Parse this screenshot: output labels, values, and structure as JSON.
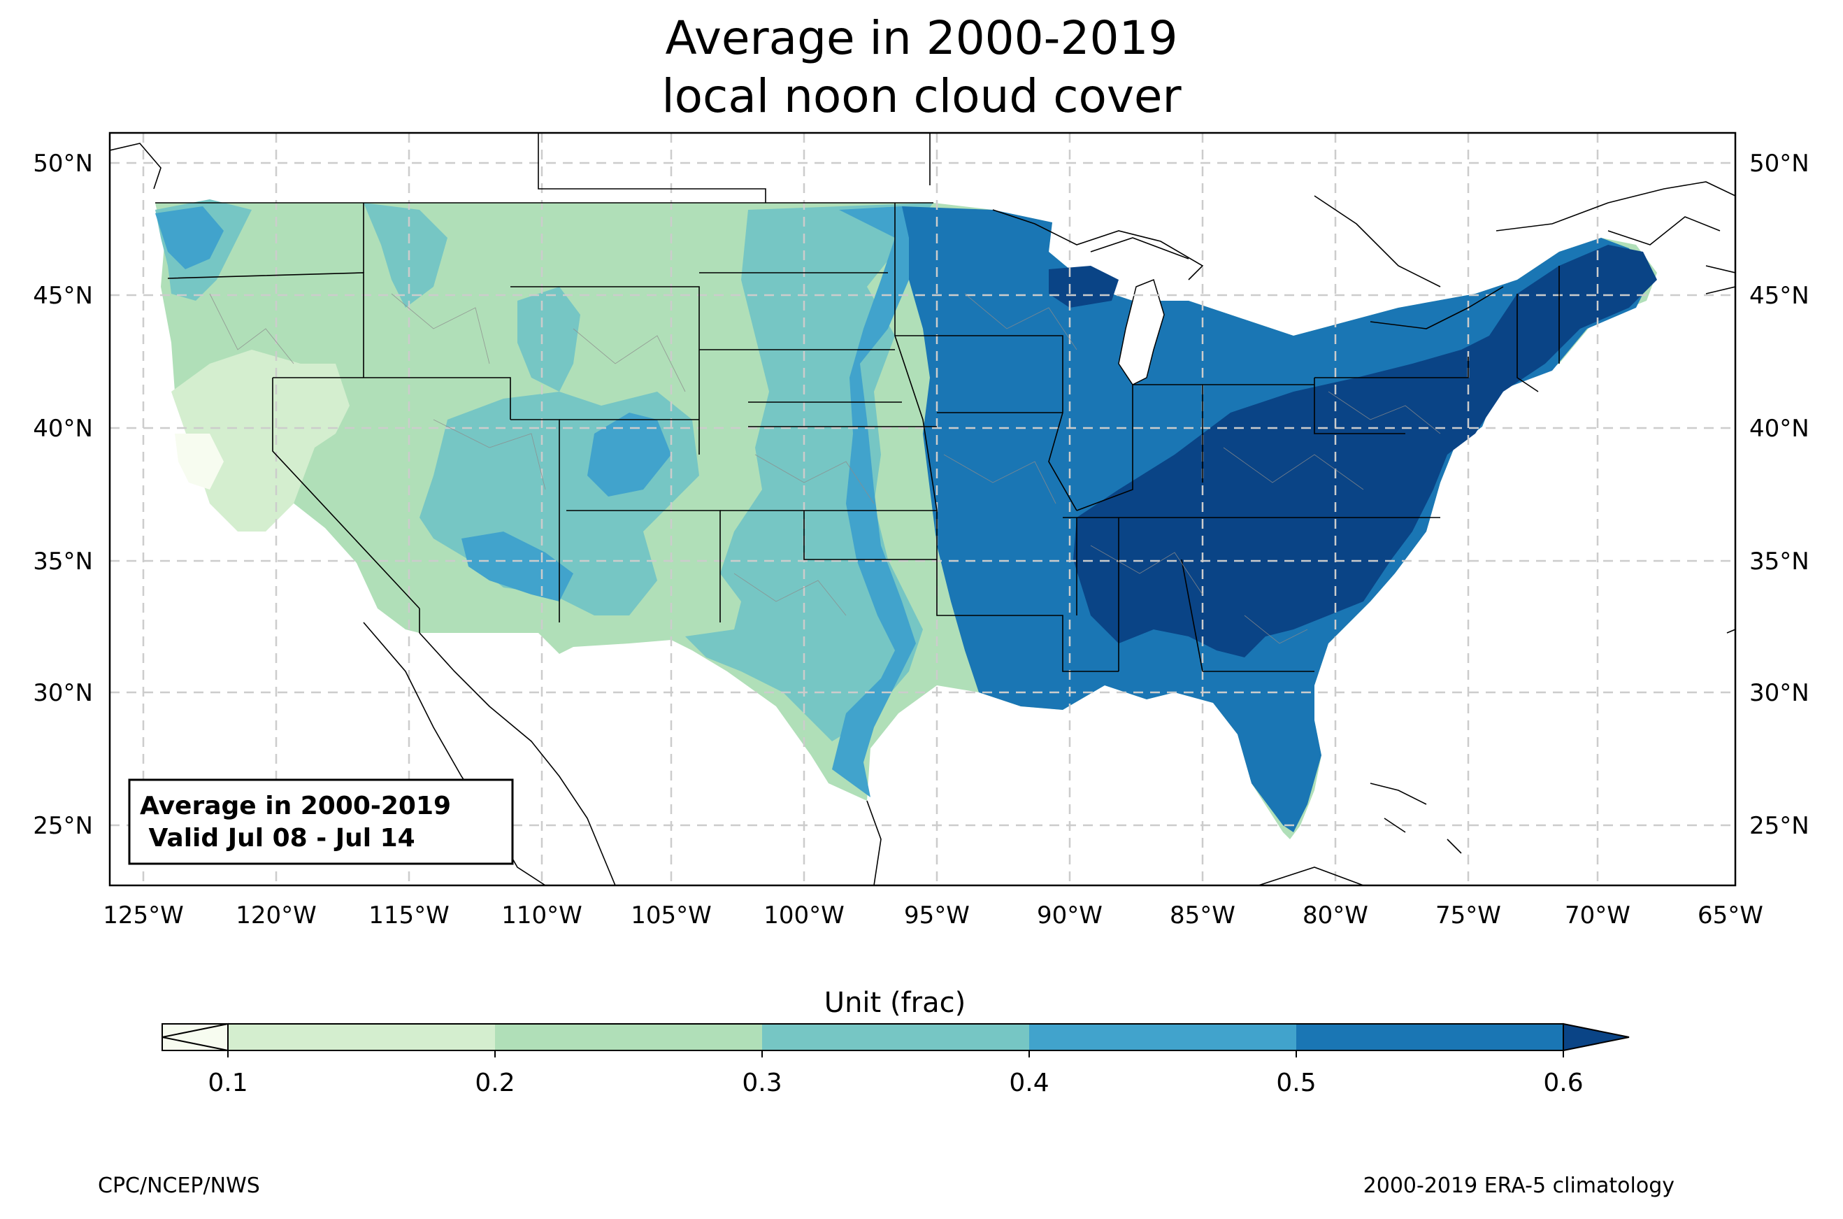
{
  "title": {
    "line1": "Average in 2000-2019",
    "line2": "local noon cloud cover"
  },
  "info_box": {
    "line1": "Average in 2000-2019",
    "line2": " Valid Jul 08 - Jul 14"
  },
  "map": {
    "longitude_labels": [
      "125°W",
      "120°W",
      "115°W",
      "110°W",
      "105°W",
      "100°W",
      "95°W",
      "90°W",
      "85°W",
      "80°W",
      "75°W",
      "70°W",
      "65°W"
    ],
    "latitude_labels": [
      "50°N",
      "45°N",
      "40°N",
      "35°N",
      "30°N",
      "25°N"
    ],
    "lon_range": [
      -126.3,
      -64.9
    ],
    "lat_range": [
      22.7,
      51.2
    ],
    "gridlines": true
  },
  "colorbar": {
    "label": "Unit (frac)",
    "ticks": [
      "0.1",
      "0.2",
      "0.3",
      "0.4",
      "0.5",
      "0.6"
    ],
    "extend": "both",
    "bins": [
      {
        "range": "<0.1",
        "color": "#f7fcf0"
      },
      {
        "range": "0.1-0.2",
        "color": "#d4eecf"
      },
      {
        "range": "0.2-0.3",
        "color": "#b0dfb8"
      },
      {
        "range": "0.3-0.4",
        "color": "#76c6c4"
      },
      {
        "range": "0.4-0.5",
        "color": "#41a3cc"
      },
      {
        "range": "0.5-0.6",
        "color": "#1a76b4"
      },
      {
        "range": ">0.6",
        "color": "#0a4486"
      }
    ]
  },
  "footer": {
    "left": "CPC/NCEP/NWS",
    "right": "2000-2019 ERA-5 climatology"
  }
}
